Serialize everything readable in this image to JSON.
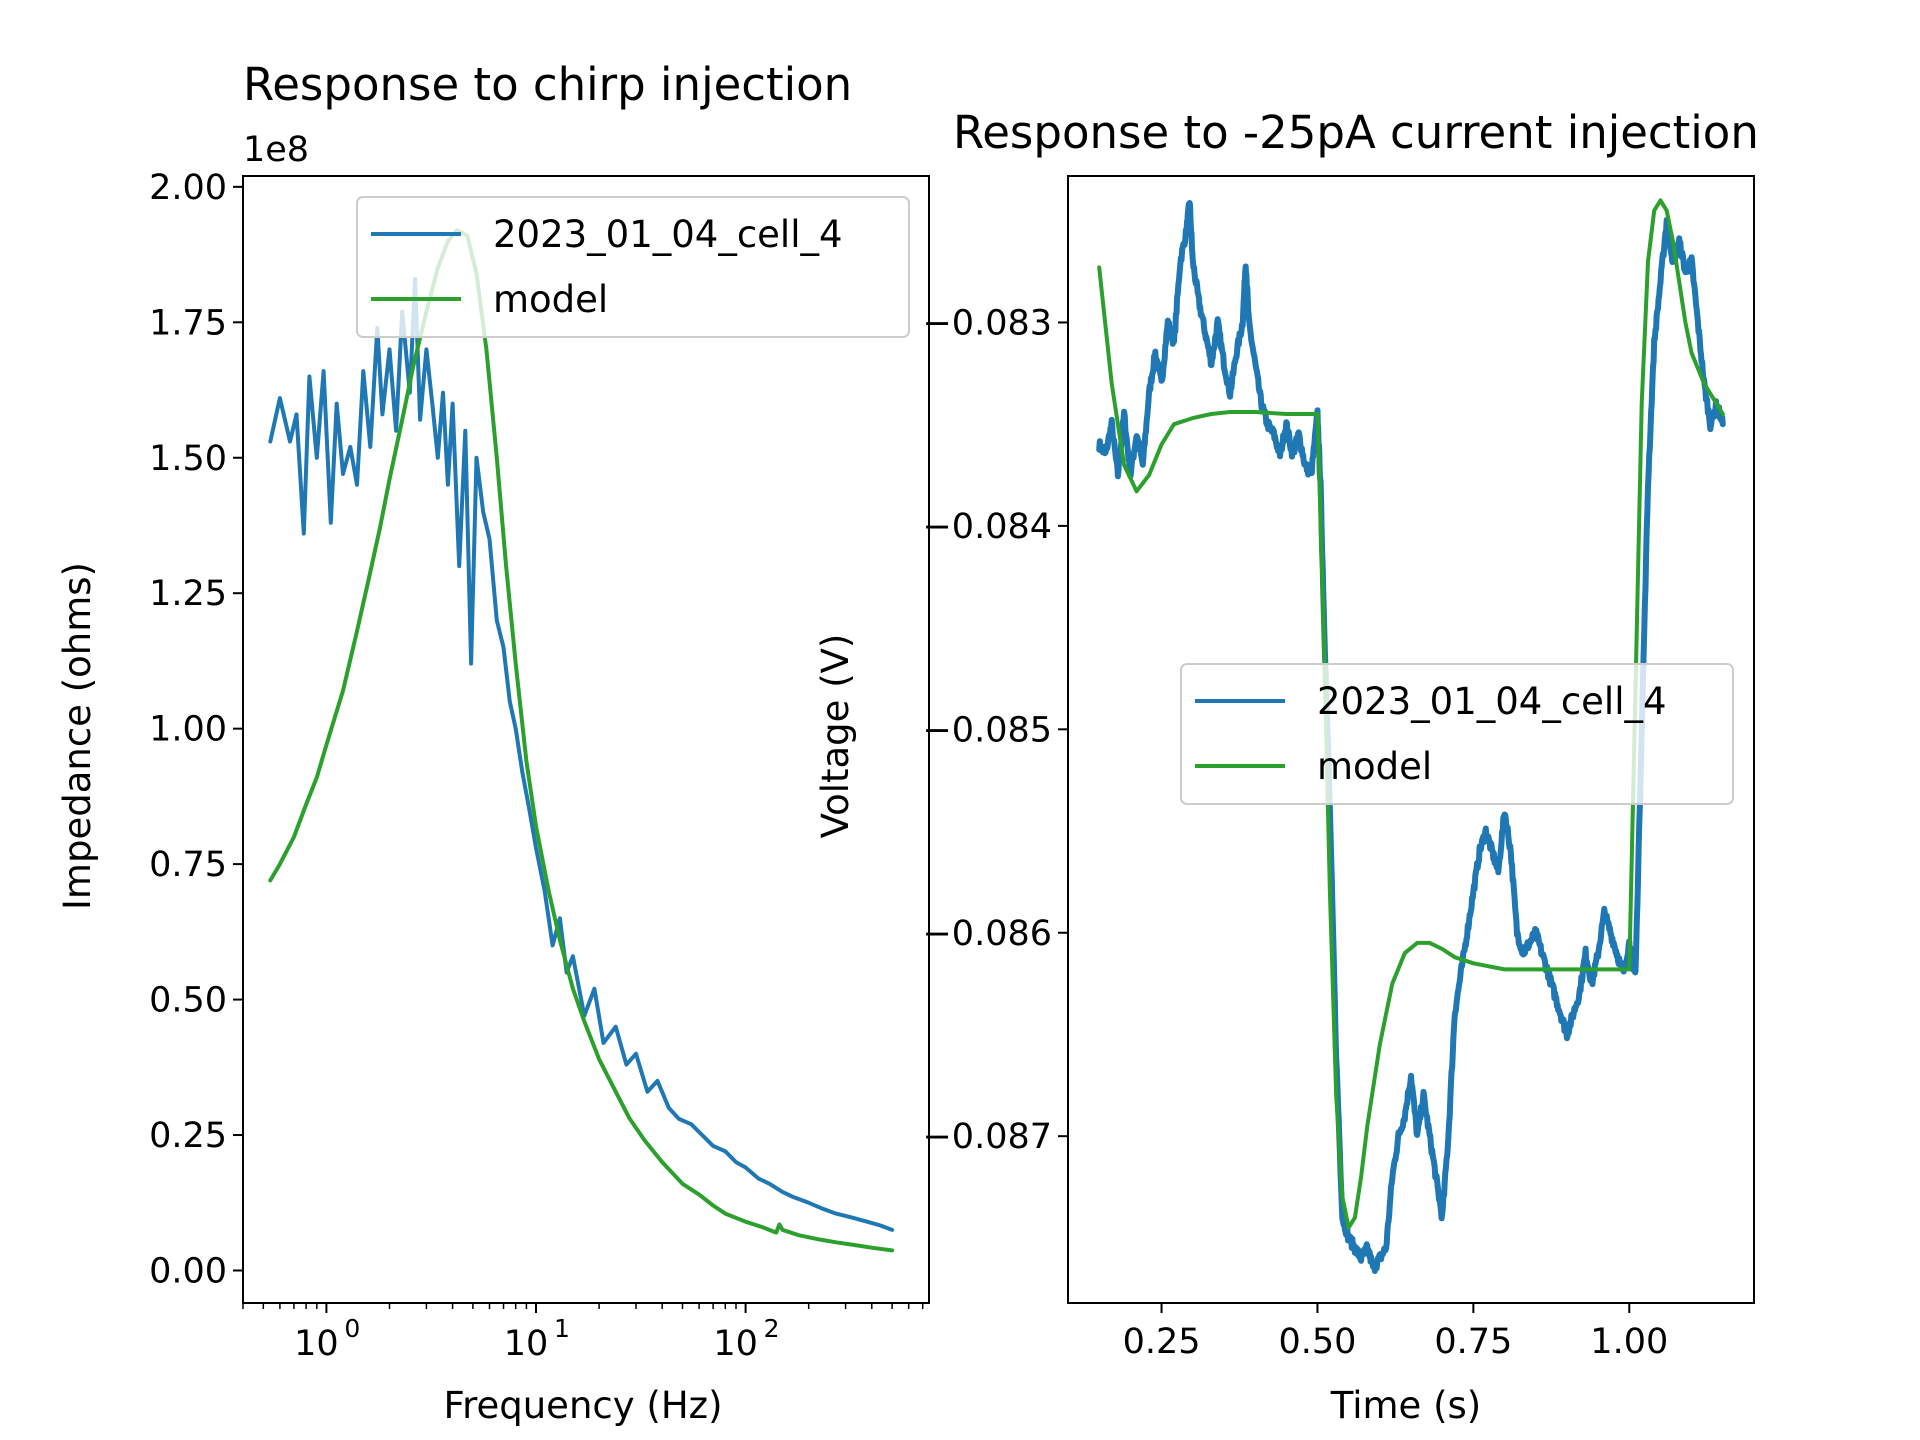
{
  "chart_data": [
    {
      "type": "line",
      "title": "Response to chirp injection",
      "xlabel": "Frequency (Hz)",
      "ylabel": "Impedance (ohms)",
      "xscale": "log",
      "xlim": [
        0.4,
        750
      ],
      "ylim": [
        -0.06,
        2.02
      ],
      "y_offset_text": "1e8",
      "xticks": [
        {
          "value": 1,
          "base": "10",
          "exp": "0"
        },
        {
          "value": 10,
          "base": "10",
          "exp": "1"
        },
        {
          "value": 100,
          "base": "10",
          "exp": "2"
        }
      ],
      "yticks": [
        "0.00",
        "0.25",
        "0.50",
        "0.75",
        "1.00",
        "1.25",
        "1.50",
        "1.75",
        "2.00"
      ],
      "legend": "upper right",
      "grid": false,
      "series": [
        {
          "name": "2023_01_04_cell_4",
          "color": "#1f77b4",
          "x": [
            0.54,
            0.6,
            0.67,
            0.72,
            0.78,
            0.83,
            0.9,
            0.97,
            1.05,
            1.12,
            1.2,
            1.3,
            1.4,
            1.5,
            1.62,
            1.75,
            1.85,
            2.0,
            2.15,
            2.3,
            2.5,
            2.65,
            2.8,
            3.0,
            3.2,
            3.4,
            3.6,
            3.8,
            4.0,
            4.3,
            4.6,
            4.9,
            5.2,
            5.6,
            6.0,
            6.5,
            7.0,
            7.5,
            8.0,
            8.6,
            9.3,
            10,
            11,
            12,
            13,
            14,
            15,
            17,
            19,
            21,
            24,
            27,
            30,
            34,
            38,
            43,
            48,
            55,
            62,
            70,
            80,
            90,
            100,
            115,
            130,
            150,
            170,
            200,
            230,
            270,
            320,
            380,
            440,
            500
          ],
          "y": [
            1.53,
            1.61,
            1.53,
            1.58,
            1.36,
            1.65,
            1.5,
            1.66,
            1.38,
            1.6,
            1.47,
            1.52,
            1.45,
            1.66,
            1.52,
            1.74,
            1.58,
            1.7,
            1.55,
            1.77,
            1.62,
            1.83,
            1.57,
            1.7,
            1.6,
            1.5,
            1.62,
            1.45,
            1.6,
            1.3,
            1.55,
            1.12,
            1.5,
            1.4,
            1.35,
            1.2,
            1.15,
            1.05,
            1.0,
            0.92,
            0.85,
            0.78,
            0.7,
            0.6,
            0.65,
            0.55,
            0.58,
            0.47,
            0.52,
            0.42,
            0.45,
            0.38,
            0.4,
            0.33,
            0.35,
            0.3,
            0.28,
            0.27,
            0.25,
            0.23,
            0.22,
            0.2,
            0.19,
            0.17,
            0.16,
            0.145,
            0.135,
            0.125,
            0.115,
            0.105,
            0.098,
            0.09,
            0.083,
            0.075
          ]
        },
        {
          "name": "model",
          "color": "#2ca02c",
          "x": [
            0.54,
            0.6,
            0.7,
            0.8,
            0.9,
            1.0,
            1.2,
            1.4,
            1.6,
            1.8,
            2.0,
            2.3,
            2.6,
            3.0,
            3.4,
            3.8,
            4.2,
            4.7,
            5.2,
            5.8,
            6.5,
            7.2,
            8.0,
            9.0,
            10,
            11.5,
            13,
            15,
            17,
            20,
            24,
            28,
            33,
            40,
            50,
            60,
            70,
            80,
            100,
            120,
            140,
            145,
            150,
            180,
            220,
            270,
            330,
            400,
            500
          ],
          "y": [
            0.72,
            0.75,
            0.8,
            0.86,
            0.91,
            0.97,
            1.07,
            1.18,
            1.28,
            1.37,
            1.46,
            1.57,
            1.67,
            1.77,
            1.85,
            1.9,
            1.92,
            1.91,
            1.84,
            1.7,
            1.5,
            1.3,
            1.12,
            0.94,
            0.82,
            0.7,
            0.61,
            0.52,
            0.46,
            0.39,
            0.33,
            0.28,
            0.24,
            0.2,
            0.16,
            0.14,
            0.12,
            0.105,
            0.09,
            0.08,
            0.07,
            0.085,
            0.075,
            0.065,
            0.058,
            0.052,
            0.047,
            0.042,
            0.037
          ]
        }
      ]
    },
    {
      "type": "line",
      "title": "Response to -25pA current injection",
      "xlabel": "Time (s)",
      "ylabel": "Voltage (V)",
      "xlim": [
        0.1,
        1.2
      ],
      "ylim": [
        -0.08782,
        -0.08228
      ],
      "xticks": [
        "0.25",
        "0.50",
        "0.75",
        "1.00"
      ],
      "yticks": [
        "−0.083",
        "−0.084",
        "−0.085",
        "−0.086",
        "−0.087"
      ],
      "legend": "center right",
      "grid": false,
      "series": [
        {
          "name": "2023_01_04_cell_4",
          "color": "#1f77b4",
          "x": [
            0.15,
            0.16,
            0.17,
            0.18,
            0.19,
            0.2,
            0.21,
            0.22,
            0.23,
            0.24,
            0.25,
            0.26,
            0.27,
            0.28,
            0.29,
            0.295,
            0.3,
            0.31,
            0.32,
            0.33,
            0.34,
            0.35,
            0.36,
            0.37,
            0.38,
            0.385,
            0.39,
            0.4,
            0.41,
            0.42,
            0.43,
            0.44,
            0.45,
            0.46,
            0.47,
            0.48,
            0.49,
            0.5,
            0.505,
            0.51,
            0.52,
            0.53,
            0.54,
            0.55,
            0.56,
            0.57,
            0.58,
            0.59,
            0.6,
            0.61,
            0.62,
            0.63,
            0.64,
            0.65,
            0.66,
            0.67,
            0.68,
            0.69,
            0.7,
            0.71,
            0.72,
            0.73,
            0.74,
            0.75,
            0.76,
            0.77,
            0.78,
            0.79,
            0.8,
            0.81,
            0.82,
            0.83,
            0.84,
            0.85,
            0.86,
            0.87,
            0.88,
            0.89,
            0.9,
            0.91,
            0.92,
            0.93,
            0.94,
            0.95,
            0.96,
            0.97,
            0.98,
            0.99,
            1.0,
            1.005,
            1.01,
            1.02,
            1.03,
            1.04,
            1.05,
            1.06,
            1.07,
            1.08,
            1.09,
            1.1,
            1.11,
            1.12,
            1.13,
            1.14,
            1.15
          ],
          "y": [
            -0.0836,
            -0.08365,
            -0.0835,
            -0.08375,
            -0.08345,
            -0.08375,
            -0.08355,
            -0.0837,
            -0.08335,
            -0.08315,
            -0.0833,
            -0.083,
            -0.0831,
            -0.0827,
            -0.08255,
            -0.0824,
            -0.0827,
            -0.0829,
            -0.08305,
            -0.0832,
            -0.083,
            -0.0832,
            -0.08335,
            -0.08315,
            -0.083,
            -0.0827,
            -0.083,
            -0.0832,
            -0.0834,
            -0.0835,
            -0.08355,
            -0.08365,
            -0.0835,
            -0.08365,
            -0.08355,
            -0.0837,
            -0.08375,
            -0.08345,
            -0.0838,
            -0.0844,
            -0.0854,
            -0.0866,
            -0.0874,
            -0.0875,
            -0.08755,
            -0.0876,
            -0.08755,
            -0.08765,
            -0.0876,
            -0.08755,
            -0.0872,
            -0.087,
            -0.0869,
            -0.0867,
            -0.087,
            -0.0868,
            -0.087,
            -0.0872,
            -0.0874,
            -0.087,
            -0.0864,
            -0.0862,
            -0.086,
            -0.0858,
            -0.0856,
            -0.0855,
            -0.0856,
            -0.0857,
            -0.0854,
            -0.0856,
            -0.086,
            -0.0861,
            -0.08605,
            -0.086,
            -0.0861,
            -0.0862,
            -0.0863,
            -0.0864,
            -0.0865,
            -0.0864,
            -0.0863,
            -0.0861,
            -0.08625,
            -0.0861,
            -0.0859,
            -0.086,
            -0.0861,
            -0.0862,
            -0.08605,
            -0.08615,
            -0.0862,
            -0.085,
            -0.0838,
            -0.0831,
            -0.0828,
            -0.0825,
            -0.0827,
            -0.0826,
            -0.08275,
            -0.0827,
            -0.083,
            -0.0833,
            -0.0835,
            -0.0834,
            -0.0835
          ],
          "style": "noisy"
        },
        {
          "name": "model",
          "color": "#2ca02c",
          "x": [
            0.15,
            0.17,
            0.19,
            0.21,
            0.23,
            0.25,
            0.27,
            0.3,
            0.33,
            0.36,
            0.4,
            0.45,
            0.5,
            0.5,
            0.51,
            0.52,
            0.53,
            0.54,
            0.55,
            0.56,
            0.57,
            0.58,
            0.6,
            0.62,
            0.64,
            0.66,
            0.68,
            0.7,
            0.72,
            0.75,
            0.8,
            0.85,
            0.9,
            0.95,
            1.0,
            1.0,
            1.01,
            1.02,
            1.03,
            1.04,
            1.05,
            1.06,
            1.07,
            1.08,
            1.09,
            1.1,
            1.12,
            1.14,
            1.15
          ],
          "y": [
            -0.08273,
            -0.0833,
            -0.0837,
            -0.08383,
            -0.08375,
            -0.0836,
            -0.0835,
            -0.08347,
            -0.08345,
            -0.08344,
            -0.08344,
            -0.08345,
            -0.08345,
            -0.08345,
            -0.0845,
            -0.0858,
            -0.0868,
            -0.0873,
            -0.08745,
            -0.0874,
            -0.0872,
            -0.08695,
            -0.08655,
            -0.08625,
            -0.0861,
            -0.08605,
            -0.08605,
            -0.08608,
            -0.08612,
            -0.08615,
            -0.08618,
            -0.08618,
            -0.08618,
            -0.08618,
            -0.08618,
            -0.08618,
            -0.0848,
            -0.0834,
            -0.0827,
            -0.08245,
            -0.0824,
            -0.08245,
            -0.0826,
            -0.0828,
            -0.083,
            -0.08315,
            -0.0833,
            -0.0834,
            -0.08345
          ]
        }
      ]
    }
  ]
}
